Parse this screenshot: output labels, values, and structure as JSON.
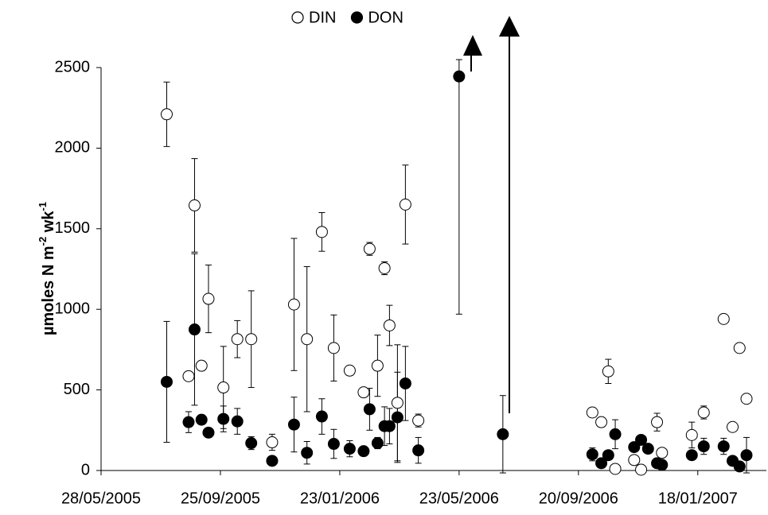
{
  "chart_data": {
    "type": "scatter",
    "y_label": [
      "µmoles N m",
      "-2",
      " wk",
      "-1"
    ],
    "xlim": [
      "2005-05-28",
      "2007-03-28"
    ],
    "xticks": [
      {
        "value": "2005-05-28",
        "label": "28/05/2005"
      },
      {
        "value": "2005-09-25",
        "label": "25/09/2005"
      },
      {
        "value": "2006-01-23",
        "label": "23/01/2006"
      },
      {
        "value": "2006-05-23",
        "label": "23/05/2006"
      },
      {
        "value": "2006-09-20",
        "label": "20/09/2006"
      },
      {
        "value": "2007-01-18",
        "label": "18/01/2007"
      }
    ],
    "ylim": [
      0,
      2500
    ],
    "yticks": [
      0,
      500,
      1000,
      1500,
      2000,
      2500
    ],
    "series": [
      {
        "name": "DIN",
        "color": "#ffffff",
        "x": [
          "2005-08-02",
          "2005-08-24",
          "2005-08-30",
          "2005-09-06",
          "2005-09-13",
          "2005-09-28",
          "2005-10-12",
          "2005-10-26",
          "2005-11-16",
          "2005-12-08",
          "2005-12-21",
          "2006-01-05",
          "2006-01-17",
          "2006-02-02",
          "2006-02-16",
          "2006-02-22",
          "2006-03-02",
          "2006-03-09",
          "2006-03-14",
          "2006-03-22",
          "2006-03-30",
          "2006-04-12",
          "2006-10-04",
          "2006-10-13",
          "2006-10-20",
          "2006-10-27",
          "2006-11-15",
          "2006-11-22",
          "2006-12-08",
          "2006-12-13",
          "2007-01-12",
          "2007-01-24",
          "2007-02-13",
          "2007-02-22",
          "2007-03-01",
          "2007-03-08"
        ],
        "values": [
          2210,
          585,
          1645,
          650,
          1065,
          515,
          815,
          815,
          175,
          1030,
          815,
          1480,
          760,
          620,
          485,
          1375,
          650,
          1255,
          900,
          420,
          1650,
          310,
          360,
          300,
          615,
          10,
          65,
          5,
          300,
          110,
          220,
          360,
          940,
          270,
          760,
          445
        ],
        "errors": [
          200,
          null,
          290,
          null,
          210,
          255,
          115,
          300,
          50,
          410,
          450,
          120,
          205,
          null,
          null,
          40,
          190,
          40,
          125,
          360,
          245,
          40,
          null,
          null,
          75,
          null,
          null,
          null,
          55,
          null,
          80,
          40,
          null,
          null,
          null,
          null
        ]
      },
      {
        "name": "DON",
        "color": "#000000",
        "x": [
          "2005-08-02",
          "2005-08-24",
          "2005-08-30",
          "2005-09-06",
          "2005-09-13",
          "2005-09-28",
          "2005-10-12",
          "2005-10-26",
          "2005-11-16",
          "2005-12-08",
          "2005-12-21",
          "2006-01-05",
          "2006-01-17",
          "2006-02-02",
          "2006-02-16",
          "2006-02-22",
          "2006-03-02",
          "2006-03-09",
          "2006-03-14",
          "2006-03-22",
          "2006-03-30",
          "2006-04-12",
          "2006-05-23",
          "2006-07-06",
          "2006-10-04",
          "2006-10-13",
          "2006-10-20",
          "2006-10-27",
          "2006-11-15",
          "2006-11-22",
          "2006-11-29",
          "2006-12-08",
          "2006-12-13",
          "2007-01-12",
          "2007-01-24",
          "2007-02-13",
          "2007-02-22",
          "2007-03-01",
          "2007-03-08"
        ],
        "values": [
          550,
          300,
          875,
          315,
          235,
          320,
          305,
          170,
          60,
          285,
          110,
          335,
          165,
          135,
          120,
          380,
          170,
          275,
          275,
          330,
          540,
          125,
          2445,
          225,
          100,
          45,
          95,
          225,
          145,
          190,
          135,
          45,
          35,
          95,
          150,
          150,
          60,
          25,
          95
        ],
        "errors": [
          375,
          65,
          470,
          null,
          null,
          80,
          80,
          40,
          null,
          170,
          70,
          110,
          90,
          50,
          null,
          130,
          35,
          120,
          110,
          280,
          230,
          80,
          1475,
          240,
          40,
          null,
          null,
          90,
          null,
          null,
          null,
          null,
          null,
          null,
          50,
          50,
          null,
          null,
          110
        ]
      }
    ]
  }
}
